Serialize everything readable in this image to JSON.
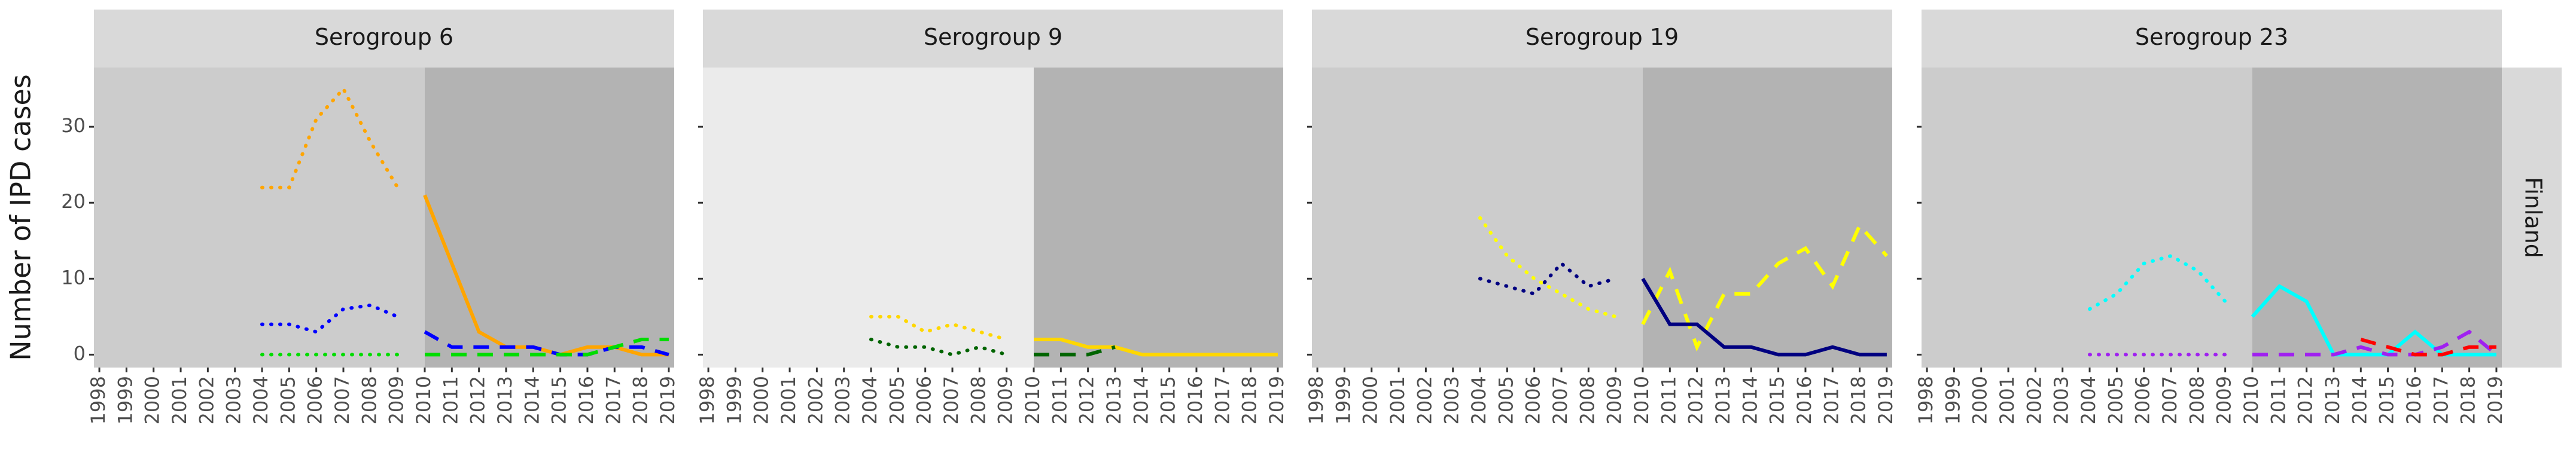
{
  "chart_data": [
    {
      "type": "line",
      "title": "Serogroup 6",
      "ylabel": "Number of IPD cases",
      "x": [
        1998,
        1999,
        2000,
        2001,
        2002,
        2003,
        2004,
        2005,
        2006,
        2007,
        2008,
        2009,
        2010,
        2011,
        2012,
        2013,
        2014,
        2015,
        2016,
        2017,
        2018,
        2019
      ],
      "xlim": [
        1997.8,
        2019.2
      ],
      "xticks": [
        1998,
        1999,
        2000,
        2001,
        2002,
        2003,
        2004,
        2005,
        2006,
        2007,
        2008,
        2009,
        2010,
        2011,
        2012,
        2013,
        2014,
        2015,
        2016,
        2017,
        2018,
        2019
      ],
      "ylim": [
        -1.7,
        37.8
      ],
      "yticks": [
        0,
        10,
        20,
        30
      ],
      "grid": false,
      "shade_start": 2010,
      "pre_color": "#cccccc",
      "post_color": "#b3b3b3",
      "series": [
        {
          "color": "#ffa500",
          "dash": "dotted",
          "values": [
            null,
            null,
            null,
            null,
            null,
            null,
            22,
            22,
            31,
            35,
            28,
            22,
            null,
            null,
            null,
            null,
            null,
            null,
            null,
            null,
            null,
            null
          ]
        },
        {
          "color": "#ffa500",
          "dash": "solid",
          "values": [
            null,
            null,
            null,
            null,
            null,
            null,
            null,
            null,
            null,
            null,
            null,
            null,
            21,
            12,
            3,
            1,
            1,
            0,
            1,
            1,
            0,
            0
          ]
        },
        {
          "color": "#0000ff",
          "dash": "dotted",
          "values": [
            null,
            null,
            null,
            null,
            null,
            null,
            4,
            4,
            3,
            6,
            6.5,
            5,
            null,
            null,
            null,
            null,
            null,
            null,
            null,
            null,
            null,
            null
          ]
        },
        {
          "color": "#0000ff",
          "dash": "dashed",
          "values": [
            null,
            null,
            null,
            null,
            null,
            null,
            null,
            null,
            null,
            null,
            null,
            null,
            3,
            1,
            1,
            1,
            1,
            0,
            0,
            1,
            1,
            0
          ]
        },
        {
          "color": "#00dd00",
          "dash": "dotted",
          "values": [
            null,
            null,
            null,
            null,
            null,
            null,
            0,
            0,
            0,
            0,
            0,
            0,
            null,
            null,
            null,
            null,
            null,
            null,
            null,
            null,
            null,
            null
          ]
        },
        {
          "color": "#00dd00",
          "dash": "dashed",
          "values": [
            null,
            null,
            null,
            null,
            null,
            null,
            null,
            null,
            null,
            null,
            null,
            null,
            0,
            0,
            0,
            0,
            0,
            0,
            0,
            1,
            2,
            2
          ]
        }
      ]
    },
    {
      "type": "line",
      "title": "Serogroup 9",
      "x": [
        1998,
        1999,
        2000,
        2001,
        2002,
        2003,
        2004,
        2005,
        2006,
        2007,
        2008,
        2009,
        2010,
        2011,
        2012,
        2013,
        2014,
        2015,
        2016,
        2017,
        2018,
        2019
      ],
      "xlim": [
        1997.8,
        2019.2
      ],
      "xticks": [
        1998,
        1999,
        2000,
        2001,
        2002,
        2003,
        2004,
        2005,
        2006,
        2007,
        2008,
        2009,
        2010,
        2011,
        2012,
        2013,
        2014,
        2015,
        2016,
        2017,
        2018,
        2019
      ],
      "ylim": [
        -1.7,
        37.8
      ],
      "yticks": [
        0,
        10,
        20,
        30
      ],
      "grid": false,
      "shade_start": 2010,
      "pre_color": "#ebebeb",
      "post_color": "#b3b3b3",
      "series": [
        {
          "color": "#ffd700",
          "dash": "dotted",
          "values": [
            null,
            null,
            null,
            null,
            null,
            null,
            5,
            5,
            3,
            4,
            3,
            2,
            null,
            null,
            null,
            null,
            null,
            null,
            null,
            null,
            null,
            null
          ]
        },
        {
          "color": "#ffd700",
          "dash": "solid",
          "values": [
            null,
            null,
            null,
            null,
            null,
            null,
            null,
            null,
            null,
            null,
            null,
            null,
            2,
            2,
            1,
            1,
            0,
            0,
            0,
            0,
            0,
            0
          ]
        },
        {
          "color": "#006400",
          "dash": "dotted",
          "values": [
            null,
            null,
            null,
            null,
            null,
            null,
            2,
            1,
            1,
            0,
            1,
            0,
            null,
            null,
            null,
            null,
            null,
            null,
            null,
            null,
            null,
            null
          ]
        },
        {
          "color": "#006400",
          "dash": "dashed",
          "values": [
            null,
            null,
            null,
            null,
            null,
            null,
            null,
            null,
            null,
            null,
            null,
            null,
            0,
            0,
            0,
            1,
            null,
            null,
            null,
            null,
            null,
            null
          ]
        }
      ]
    },
    {
      "type": "line",
      "title": "Serogroup 19",
      "x": [
        1998,
        1999,
        2000,
        2001,
        2002,
        2003,
        2004,
        2005,
        2006,
        2007,
        2008,
        2009,
        2010,
        2011,
        2012,
        2013,
        2014,
        2015,
        2016,
        2017,
        2018,
        2019
      ],
      "xlim": [
        1997.8,
        2019.2
      ],
      "xticks": [
        1998,
        1999,
        2000,
        2001,
        2002,
        2003,
        2004,
        2005,
        2006,
        2007,
        2008,
        2009,
        2010,
        2011,
        2012,
        2013,
        2014,
        2015,
        2016,
        2017,
        2018,
        2019
      ],
      "ylim": [
        -1.7,
        37.8
      ],
      "yticks": [
        0,
        10,
        20,
        30
      ],
      "grid": false,
      "shade_start": 2010,
      "pre_color": "#cccccc",
      "post_color": "#b3b3b3",
      "series": [
        {
          "color": "#ffff00",
          "dash": "dotted",
          "values": [
            null,
            null,
            null,
            null,
            null,
            null,
            18,
            13,
            10,
            8,
            6,
            5,
            null,
            null,
            null,
            null,
            null,
            null,
            null,
            null,
            null,
            null
          ]
        },
        {
          "color": "#ffff00",
          "dash": "dashed",
          "values": [
            null,
            null,
            null,
            null,
            null,
            null,
            null,
            null,
            null,
            null,
            null,
            null,
            4,
            11,
            1,
            8,
            8,
            12,
            14,
            9,
            17,
            13
          ]
        },
        {
          "color": "#000080",
          "dash": "dotted",
          "values": [
            null,
            null,
            null,
            null,
            null,
            null,
            10,
            9,
            8,
            12,
            9,
            10,
            null,
            null,
            null,
            null,
            null,
            null,
            null,
            null,
            null,
            null
          ]
        },
        {
          "color": "#000080",
          "dash": "solid",
          "values": [
            null,
            null,
            null,
            null,
            null,
            null,
            null,
            null,
            null,
            null,
            null,
            null,
            10,
            4,
            4,
            1,
            1,
            0,
            0,
            1,
            0,
            0
          ]
        }
      ]
    },
    {
      "type": "line",
      "title": "Serogroup 23",
      "facet_label": "Finland",
      "x": [
        1998,
        1999,
        2000,
        2001,
        2002,
        2003,
        2004,
        2005,
        2006,
        2007,
        2008,
        2009,
        2010,
        2011,
        2012,
        2013,
        2014,
        2015,
        2016,
        2017,
        2018,
        2019
      ],
      "xlim": [
        1997.8,
        2019.2
      ],
      "xticks": [
        1998,
        1999,
        2000,
        2001,
        2002,
        2003,
        2004,
        2005,
        2006,
        2007,
        2008,
        2009,
        2010,
        2011,
        2012,
        2013,
        2014,
        2015,
        2016,
        2017,
        2018,
        2019
      ],
      "ylim": [
        -1.7,
        37.8
      ],
      "yticks": [
        0,
        10,
        20,
        30
      ],
      "grid": false,
      "shade_start": 2010,
      "pre_color": "#cccccc",
      "post_color": "#b3b3b3",
      "series": [
        {
          "color": "#00ffff",
          "dash": "dotted",
          "values": [
            null,
            null,
            null,
            null,
            null,
            null,
            6,
            8,
            12,
            13,
            11,
            7,
            null,
            null,
            null,
            null,
            null,
            null,
            null,
            null,
            null,
            null
          ]
        },
        {
          "color": "#00ffff",
          "dash": "solid",
          "values": [
            null,
            null,
            null,
            null,
            null,
            null,
            null,
            null,
            null,
            null,
            null,
            null,
            5,
            9,
            7,
            0,
            0,
            0,
            3,
            0,
            0,
            0
          ]
        },
        {
          "color": "#a020f0",
          "dash": "dotted",
          "values": [
            null,
            null,
            null,
            null,
            null,
            null,
            0,
            0,
            0,
            0,
            0,
            0,
            null,
            null,
            null,
            null,
            null,
            null,
            null,
            null,
            null,
            null
          ]
        },
        {
          "color": "#a020f0",
          "dash": "dashed",
          "values": [
            null,
            null,
            null,
            null,
            null,
            null,
            null,
            null,
            null,
            null,
            null,
            null,
            0,
            0,
            0,
            0,
            1,
            0,
            0,
            1,
            3,
            0
          ]
        },
        {
          "color": "#ff0000",
          "dash": "dashed",
          "values": [
            null,
            null,
            null,
            null,
            null,
            null,
            null,
            null,
            null,
            null,
            null,
            null,
            null,
            null,
            null,
            null,
            2,
            1,
            0,
            0,
            1,
            1
          ]
        }
      ]
    }
  ]
}
